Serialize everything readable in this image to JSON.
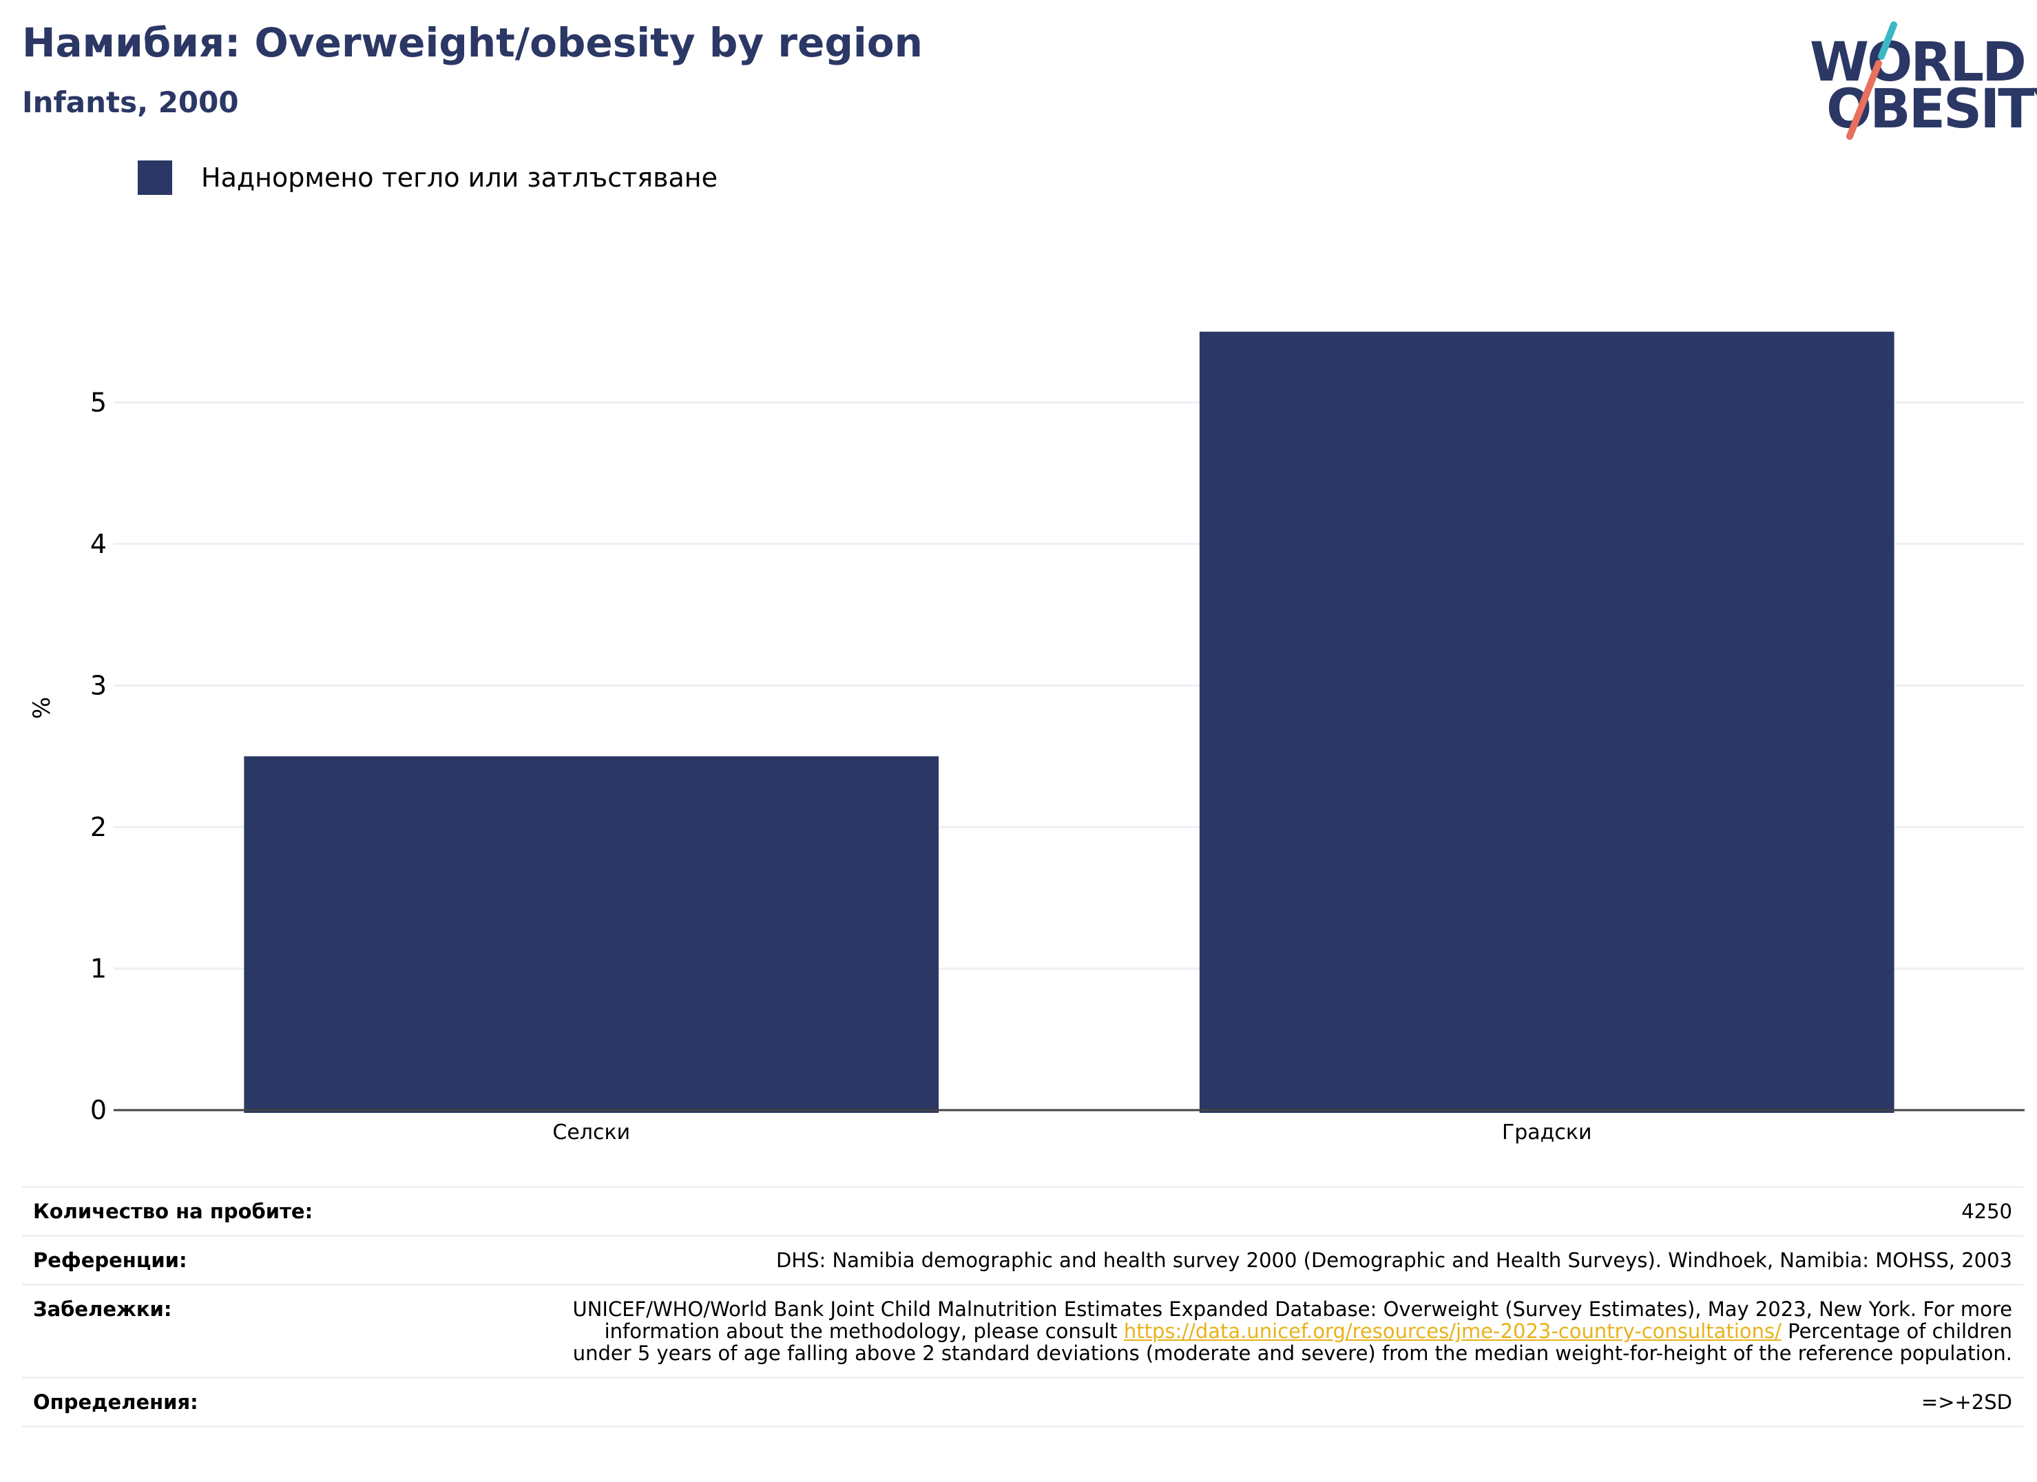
{
  "header": {
    "title": "Намибия: Overweight/obesity by region",
    "subtitle": "Infants, 2000"
  },
  "logo": {
    "line1": "WORLD",
    "line2": "OBESITY",
    "colors": {
      "text": "#2b3764",
      "slash_top": "#3bb8c3",
      "slash_bottom": "#e8705e"
    }
  },
  "chart_data": {
    "type": "bar",
    "categories": [
      "Селски",
      "Градски"
    ],
    "series": [
      {
        "name": "Наднормено тегло или затлъстяване",
        "values": [
          2.5,
          5.5
        ],
        "color": "#2b3764"
      }
    ],
    "title": "Намибия: Overweight/obesity by region",
    "subtitle": "Infants, 2000",
    "xlabel": "",
    "ylabel": "%",
    "ylim": [
      0,
      5.8
    ],
    "yticks": [
      0,
      1,
      2,
      3,
      4,
      5
    ],
    "grid": true,
    "legend_position": "top-left"
  },
  "info": {
    "sample_label": "Количество на пробите:",
    "sample_value": "4250",
    "references_label": "Референции:",
    "references_value": "DHS: Namibia demographic and health survey 2000 (Demographic and Health Surveys). Windhoek, Namibia: MOHSS, 2003",
    "notes_label": "Забележки:",
    "notes_before": "UNICEF/WHO/World Bank Joint Child Malnutrition Estimates Expanded Database: Overweight (Survey Estimates), May 2023, New York. For more information about the methodology, please consult ",
    "notes_link": "https://data.unicef.org/resources/jme-2023-country-consultations/",
    "notes_after": " Percentage of children under 5 years of age falling above 2 standard deviations (moderate and severe) from the median weight-for-height of the reference population.",
    "definitions_label": "Определения:",
    "definitions_value": "=>+2SD"
  }
}
